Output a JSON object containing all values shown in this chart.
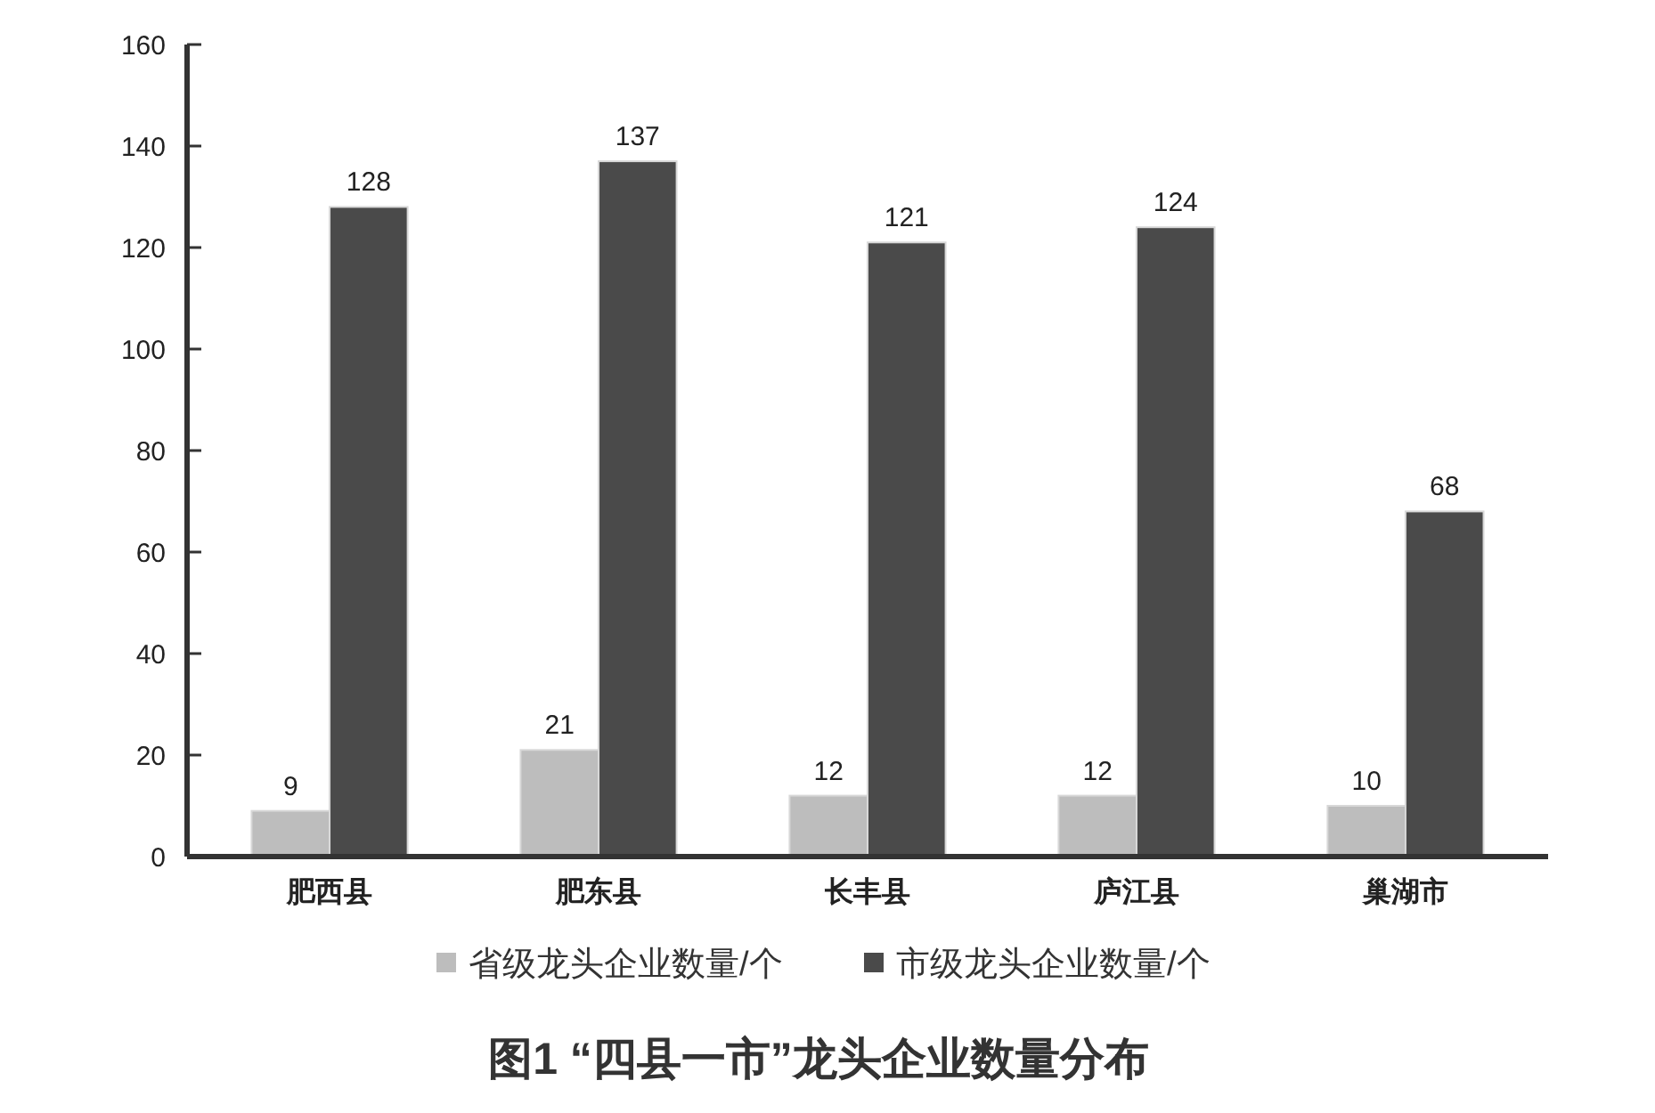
{
  "chart_data": {
    "type": "bar",
    "title": "图1 “四县一市”龙头企业数量分布",
    "categories": [
      "肥西县",
      "肥东县",
      "长丰县",
      "庐江县",
      "巢湖市"
    ],
    "series": [
      {
        "name": "省级龙头企业数量/个",
        "color": "#bdbdbd",
        "values": [
          9,
          21,
          12,
          12,
          10
        ]
      },
      {
        "name": "市级龙头企业数量/个",
        "color": "#4a4a4a",
        "values": [
          128,
          137,
          121,
          124,
          68
        ]
      }
    ],
    "ylim": [
      0,
      160
    ],
    "yticks": [
      0,
      20,
      40,
      60,
      80,
      100,
      120,
      140,
      160
    ],
    "grid": false,
    "legend": "bottom",
    "data_labels": true
  }
}
